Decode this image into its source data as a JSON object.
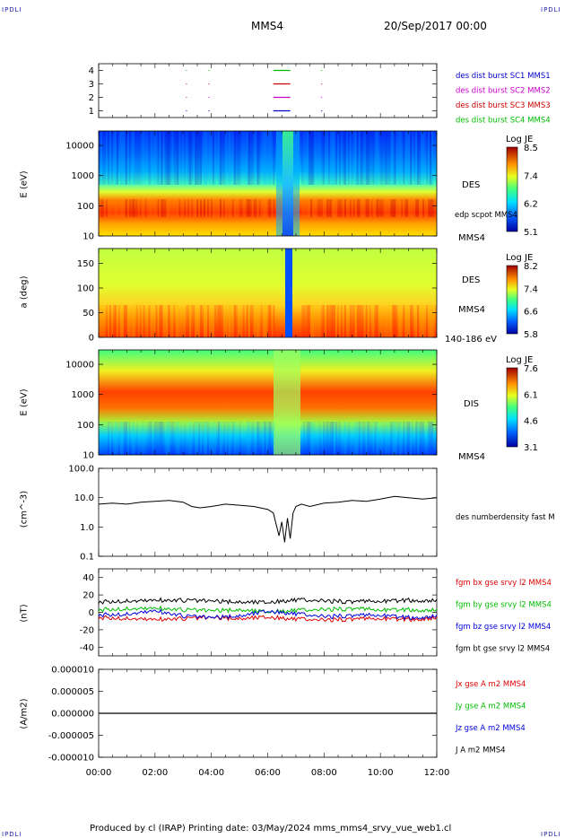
{
  "corners": {
    "tl": "IPDLI",
    "tr": "IPDLI",
    "bl": "IPDLI",
    "br": "IPDLI"
  },
  "header": {
    "spacecraft": "MMS4",
    "date": "20/Sep/2017 00:00"
  },
  "footer": "Produced by cl (IRAP)   Printing date: 03/May/2024   mms_mms4_srvy_vue_web1.cl",
  "panels": {
    "burst": {
      "yticks": [
        "4",
        "3",
        "2",
        "1"
      ],
      "legend": [
        {
          "text": "des dist burst SC1 MMS1",
          "color": "#0000cc"
        },
        {
          "text": "des dist burst SC2 MMS2",
          "color": "#cc00cc"
        },
        {
          "text": "des dist burst SC3 MMS3",
          "color": "#cc0000"
        },
        {
          "text": "des dist burst SC4 MMS4",
          "color": "#00bb00"
        }
      ]
    },
    "des_energy": {
      "ylabel": "E (eV)",
      "yticks": [
        "10000",
        "1000",
        "100",
        "10"
      ],
      "label": "DES",
      "sublabel": "edp scpot MMS4",
      "probe": "MMS4",
      "colorbar": {
        "title": "Log JE",
        "ticks": [
          "8.5",
          "7.4",
          "6.2",
          "5.1"
        ]
      }
    },
    "des_pitch": {
      "ylabel": "a (deg)",
      "yticks": [
        "150",
        "100",
        "50",
        "0"
      ],
      "label": "DES",
      "probe": "MMS4",
      "range": "140-186 eV",
      "colorbar": {
        "title": "Log JE",
        "ticks": [
          "8.2",
          "7.4",
          "6.6",
          "5.8"
        ]
      }
    },
    "dis_energy": {
      "ylabel": "E (eV)",
      "yticks": [
        "10000",
        "1000",
        "100",
        "10"
      ],
      "label": "DIS",
      "probe": "MMS4",
      "colorbar": {
        "title": "Log JE",
        "ticks": [
          "7.6",
          "6.1",
          "4.6",
          "3.1"
        ]
      }
    },
    "density": {
      "ylabel": "(cm^-3)",
      "yticks": [
        "100.0",
        "10.0",
        "1.0",
        "0.1"
      ],
      "legend": "des numberdensity fast M"
    },
    "bfield": {
      "ylabel": "(nT)",
      "yticks": [
        "40",
        "20",
        "0",
        "-20",
        "-40"
      ],
      "legend": [
        {
          "text": "fgm bx gse srvy l2 MMS4",
          "color": "#dd0000"
        },
        {
          "text": "fgm by gse srvy l2 MMS4",
          "color": "#00bb00"
        },
        {
          "text": "fgm bz gse srvy l2 MMS4",
          "color": "#0000dd"
        },
        {
          "text": "fgm bt gse srvy l2 MMS4",
          "color": "#000000"
        }
      ]
    },
    "current": {
      "ylabel": "(A/m2)",
      "yticks": [
        "0.000010",
        "0.000005",
        "0.000000",
        "-0.000005",
        "-0.000010"
      ],
      "legend": [
        {
          "text": "Jx gse A m2 MMS4",
          "color": "#dd0000"
        },
        {
          "text": "Jy gse A m2 MMS4",
          "color": "#00bb00"
        },
        {
          "text": "Jz gse A m2 MMS4",
          "color": "#0000dd"
        },
        {
          "text": "J A m2 MMS4",
          "color": "#000000"
        }
      ]
    }
  },
  "xaxis": {
    "ticks": [
      "00:00",
      "02:00",
      "04:00",
      "06:00",
      "08:00",
      "10:00",
      "12:00"
    ]
  },
  "chart_data": [
    {
      "type": "line",
      "subject": "burst intervals",
      "ylim": [
        0.5,
        4.5
      ],
      "yticks": [
        1,
        2,
        3,
        4
      ],
      "series": [
        {
          "name": "des dist burst SC1 MMS1",
          "y": 1,
          "intervals": [
            [
              6.2,
              6.8
            ]
          ]
        },
        {
          "name": "des dist burst SC2 MMS2",
          "y": 2,
          "intervals": [
            [
              6.2,
              6.8
            ]
          ]
        },
        {
          "name": "des dist burst SC3 MMS3",
          "y": 3,
          "intervals": [
            [
              6.2,
              6.8
            ]
          ]
        },
        {
          "name": "des dist burst SC4 MMS4",
          "y": 4,
          "intervals": [
            [
              6.2,
              6.8
            ]
          ]
        }
      ]
    },
    {
      "type": "heatmap",
      "subject": "DES energy spectrogram",
      "ylog": true,
      "ylim": [
        10,
        30000
      ],
      "zlabel": "Log JE",
      "zlim": [
        5.1,
        8.5
      ]
    },
    {
      "type": "heatmap",
      "subject": "DES pitch angle 140-186 eV",
      "ylim": [
        0,
        180
      ],
      "zlabel": "Log JE",
      "zlim": [
        5.8,
        8.2
      ]
    },
    {
      "type": "heatmap",
      "subject": "DIS energy spectrogram",
      "ylog": true,
      "ylim": [
        10,
        30000
      ],
      "zlabel": "Log JE",
      "zlim": [
        3.1,
        7.6
      ]
    },
    {
      "type": "line",
      "subject": "density",
      "ylog": true,
      "ylim": [
        0.1,
        100
      ],
      "x": [
        0,
        0.5,
        1,
        1.5,
        2,
        2.5,
        3,
        3.3,
        3.6,
        4,
        4.5,
        5,
        5.5,
        6,
        6.2,
        6.4,
        6.5,
        6.6,
        6.7,
        6.8,
        6.9,
        7,
        7.2,
        7.5,
        8,
        8.5,
        9,
        9.5,
        10,
        10.5,
        11,
        11.5,
        12
      ],
      "series": [
        {
          "name": "des numberdensity fast M",
          "values": [
            6,
            6.5,
            6,
            7,
            7.5,
            8,
            7,
            5,
            4.5,
            5,
            6,
            5.5,
            5,
            4,
            3,
            0.5,
            1.5,
            0.3,
            2,
            0.4,
            3,
            5,
            6,
            5,
            6.5,
            7,
            8,
            7.5,
            9,
            11,
            10,
            9,
            10
          ]
        }
      ]
    },
    {
      "type": "line",
      "subject": "magnetic field",
      "ylim": [
        -50,
        50
      ],
      "x": [
        0,
        1,
        2,
        3,
        4,
        5,
        6,
        7,
        8,
        9,
        10,
        11,
        12
      ],
      "series": [
        {
          "name": "fgm bt gse srvy l2 MMS4",
          "values": [
            12,
            13,
            14,
            14,
            13,
            12,
            12,
            14,
            13,
            12,
            13,
            14,
            13
          ]
        },
        {
          "name": "fgm by gse srvy l2 MMS4",
          "values": [
            3,
            4,
            5,
            3,
            2,
            3,
            1,
            2,
            3,
            4,
            3,
            3,
            2
          ]
        },
        {
          "name": "fgm bx gse srvy l2 MMS4",
          "values": [
            -6,
            -7,
            -8,
            -7,
            -6,
            -7,
            -5,
            -8,
            -9,
            -8,
            -7,
            -8,
            -7
          ]
        },
        {
          "name": "fgm bz gse srvy l2 MMS4",
          "values": [
            -3,
            -2,
            2,
            -4,
            -6,
            -4,
            2,
            -2,
            -5,
            -4,
            -3,
            -6,
            -5
          ]
        }
      ]
    },
    {
      "type": "line",
      "subject": "current density",
      "ylim": [
        -1e-05,
        1e-05
      ],
      "x": [
        0,
        6,
        12
      ],
      "series": [
        {
          "name": "Jx gse A m2 MMS4",
          "values": [
            0,
            0,
            0
          ]
        },
        {
          "name": "Jy gse A m2 MMS4",
          "values": [
            0,
            0,
            0
          ]
        },
        {
          "name": "Jz gse A m2 MMS4",
          "values": [
            0,
            0,
            0
          ]
        },
        {
          "name": "J A m2 MMS4",
          "values": [
            0,
            0,
            0
          ]
        }
      ]
    }
  ]
}
